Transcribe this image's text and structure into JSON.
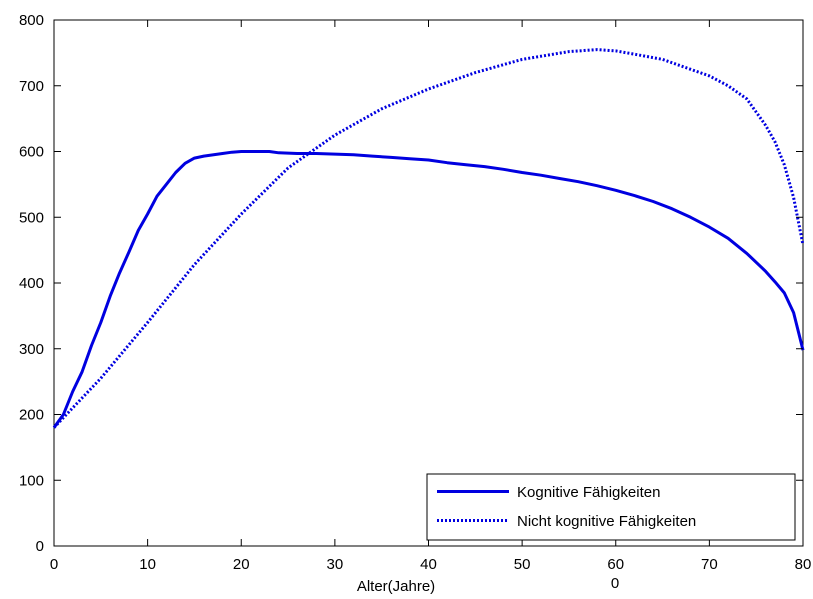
{
  "chart_data": {
    "type": "line",
    "xlabel": "Alter(Jahre)",
    "ylabel": "",
    "xlim": [
      0,
      80
    ],
    "ylim": [
      0,
      800
    ],
    "xticks": [
      "0",
      "10",
      "20",
      "30",
      "40",
      "50",
      "60",
      "70",
      "80"
    ],
    "yticks": [
      "0",
      "100",
      "200",
      "300",
      "400",
      "500",
      "600",
      "700",
      "800"
    ],
    "xtick_note": "0",
    "grid": false,
    "legend_position": "bottom-right",
    "line_color": "#0000e0",
    "series": [
      {
        "name": "Kognitive Fähigkeiten",
        "style": "solid",
        "x": [
          0,
          1,
          2,
          3,
          4,
          5,
          6,
          7,
          8,
          9,
          10,
          11,
          12,
          13,
          14,
          15,
          16,
          18,
          19,
          20,
          22,
          23,
          24,
          26,
          28,
          30,
          32,
          34,
          36,
          38,
          40,
          42,
          44,
          46,
          48,
          50,
          52,
          54,
          56,
          58,
          60,
          62,
          64,
          66,
          68,
          70,
          72,
          74,
          76,
          77,
          78,
          79,
          80
        ],
        "values": [
          180,
          200,
          235,
          265,
          305,
          340,
          380,
          415,
          447,
          480,
          505,
          532,
          550,
          568,
          582,
          590,
          593,
          597,
          599,
          600,
          600,
          600,
          598,
          597,
          597,
          596,
          595,
          593,
          591,
          589,
          587,
          583,
          580,
          577,
          573,
          568,
          564,
          559,
          554,
          548,
          541,
          533,
          524,
          513,
          500,
          485,
          468,
          445,
          418,
          402,
          385,
          355,
          298
        ]
      },
      {
        "name": "Nicht kognitive Fähigkeiten",
        "style": "dotted",
        "x": [
          0,
          5,
          10,
          15,
          20,
          25,
          30,
          35,
          40,
          45,
          50,
          55,
          58,
          60,
          62,
          65,
          68,
          70,
          72,
          74,
          76,
          77,
          78,
          79,
          80
        ],
        "values": [
          180,
          255,
          340,
          428,
          505,
          575,
          625,
          665,
          695,
          720,
          740,
          752,
          755,
          753,
          748,
          740,
          725,
          715,
          700,
          680,
          640,
          615,
          580,
          530,
          458
        ]
      }
    ]
  }
}
